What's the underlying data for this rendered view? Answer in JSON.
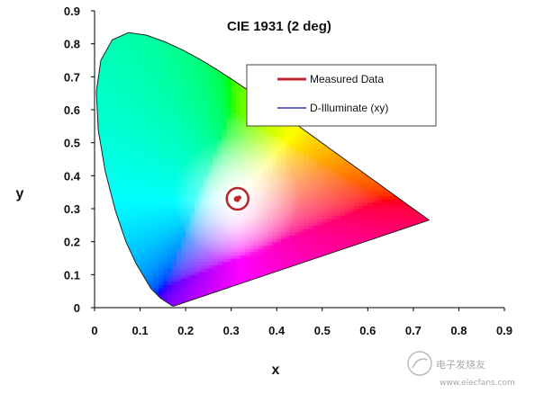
{
  "chart_data": {
    "type": "scatter",
    "title": "CIE 1931 (2 deg)",
    "xlabel": "x",
    "ylabel": "y",
    "xlim": [
      0,
      0.9
    ],
    "ylim": [
      0,
      0.9
    ],
    "x_ticks": [
      "0",
      "0.1",
      "0.2",
      "0.3",
      "0.4",
      "0.5",
      "0.6",
      "0.7",
      "0.8",
      "0.9"
    ],
    "y_ticks": [
      "0",
      "0.1",
      "0.2",
      "0.3",
      "0.4",
      "0.5",
      "0.6",
      "0.7",
      "0.8",
      "0.9"
    ],
    "grid": false,
    "legend_position": "top-right",
    "series": [
      {
        "name": "Measured Data",
        "color": "#c0272d",
        "points": [
          {
            "x": 0.31,
            "y": 0.33
          },
          {
            "x": 0.313,
            "y": 0.333
          },
          {
            "x": 0.316,
            "y": 0.331
          },
          {
            "x": 0.311,
            "y": 0.327
          },
          {
            "x": 0.318,
            "y": 0.334
          },
          {
            "x": 0.314,
            "y": 0.326
          }
        ]
      },
      {
        "name": "D-Illuminate (xy)",
        "color": "#2e3a9c",
        "points": []
      }
    ],
    "spectral_locus": [
      [
        0.1741,
        0.005
      ],
      [
        0.1738,
        0.0049
      ],
      [
        0.1733,
        0.0048
      ],
      [
        0.1726,
        0.0048
      ],
      [
        0.1714,
        0.0051
      ],
      [
        0.1689,
        0.0069
      ],
      [
        0.1644,
        0.0109
      ],
      [
        0.1566,
        0.0177
      ],
      [
        0.144,
        0.0297
      ],
      [
        0.1241,
        0.0578
      ],
      [
        0.0913,
        0.1327
      ],
      [
        0.0687,
        0.2007
      ],
      [
        0.0454,
        0.295
      ],
      [
        0.0235,
        0.4127
      ],
      [
        0.0082,
        0.5384
      ],
      [
        0.0039,
        0.6548
      ],
      [
        0.0139,
        0.7502
      ],
      [
        0.0389,
        0.812
      ],
      [
        0.0743,
        0.8338
      ],
      [
        0.1142,
        0.8262
      ],
      [
        0.1547,
        0.8059
      ],
      [
        0.1929,
        0.7816
      ],
      [
        0.2296,
        0.7543
      ],
      [
        0.2658,
        0.7243
      ],
      [
        0.3016,
        0.6923
      ],
      [
        0.3373,
        0.6589
      ],
      [
        0.3731,
        0.6245
      ],
      [
        0.4087,
        0.5896
      ],
      [
        0.4441,
        0.5547
      ],
      [
        0.4788,
        0.5202
      ],
      [
        0.5125,
        0.4866
      ],
      [
        0.5448,
        0.4544
      ],
      [
        0.5752,
        0.4242
      ],
      [
        0.6029,
        0.3965
      ],
      [
        0.627,
        0.3725
      ],
      [
        0.6482,
        0.3514
      ],
      [
        0.6658,
        0.334
      ],
      [
        0.6801,
        0.3197
      ],
      [
        0.6915,
        0.3083
      ],
      [
        0.7006,
        0.2993
      ],
      [
        0.7079,
        0.292
      ],
      [
        0.714,
        0.2859
      ],
      [
        0.719,
        0.2809
      ],
      [
        0.723,
        0.277
      ],
      [
        0.726,
        0.274
      ],
      [
        0.7283,
        0.2717
      ],
      [
        0.73,
        0.27
      ],
      [
        0.7311,
        0.2689
      ],
      [
        0.732,
        0.268
      ],
      [
        0.7327,
        0.2673
      ],
      [
        0.7334,
        0.2666
      ],
      [
        0.734,
        0.266
      ],
      [
        0.7344,
        0.2656
      ],
      [
        0.7346,
        0.2654
      ],
      [
        0.7347,
        0.2653
      ]
    ],
    "highlight_circle": {
      "x": 0.314,
      "y": 0.33
    }
  },
  "watermark": {
    "text": "电子发烧友",
    "url": "www.elecfans.com"
  }
}
